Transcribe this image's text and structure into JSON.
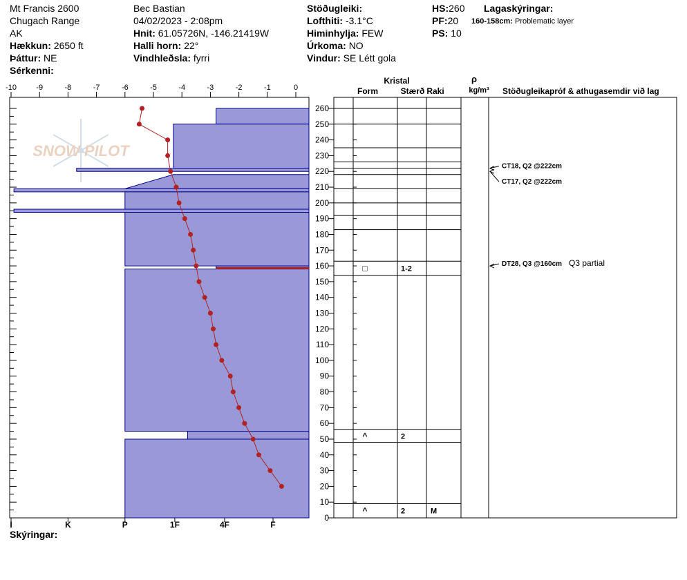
{
  "header": {
    "location": "Mt Francis 2600",
    "range": "Chugach Range",
    "state": "AK",
    "elevation_label": "Hækkun:",
    "elevation_value": "2650 ft",
    "aspect_label": "Þáttur:",
    "aspect_value": "NE",
    "features_label": "Sérkenni:",
    "observer": "Bec Bastian",
    "datetime": "04/02/2023 - 2:08pm",
    "coords_label": "Hnit:",
    "coords_value": "61.05726N, -146.21419W",
    "slope_label": "Halli horn:",
    "slope_value": "22°",
    "wind_loading_label": "Vindhleðsla:",
    "wind_loading_value": "fyrri",
    "stability_label": "Stöðugleiki:",
    "air_temp_label": "Lofthiti:",
    "air_temp_value": "-3.1°C",
    "sky_label": "Himinhylja:",
    "sky_value": "FEW",
    "precip_label": "Úrkoma:",
    "precip_value": "NO",
    "wind_label": "Vindur:",
    "wind_value": "SE  Létt gola",
    "hs_label": "HS:",
    "hs_value": "260",
    "pf_label": "PF:",
    "pf_value": "20",
    "ps_label": "PS:",
    "ps_value": "10",
    "layer_notes_label": "Lagaskýringar:",
    "layer_note_range": "160-158cm:",
    "layer_note_text": "Problematic layer"
  },
  "footer": {
    "legend_label": "Skýringar:"
  },
  "watermark": "SNOW PILOT",
  "colors": {
    "hardness_fill": "#9999d8",
    "hardness_stroke": "#00008b",
    "temp_line": "#b22222",
    "problem_layer": "#b22222"
  },
  "chart_data": {
    "type": "snow-profile",
    "temp_axis_ticks": [
      "-10",
      "-9",
      "-8",
      "-7",
      "-6",
      "-5",
      "-4",
      "-3",
      "-2",
      "-1",
      "0"
    ],
    "hardness_ticks": [
      "I",
      "K",
      "P",
      "1F",
      "4F",
      "F"
    ],
    "depth_ticks": [
      "0",
      "10",
      "20",
      "30",
      "40",
      "50",
      "60",
      "70",
      "80",
      "90",
      "100",
      "110",
      "120",
      "130",
      "140",
      "150",
      "160",
      "170",
      "180",
      "190",
      "200",
      "210",
      "220",
      "230",
      "240",
      "250",
      "260"
    ],
    "ylim": [
      0,
      260
    ],
    "xlim": [
      -10,
      0
    ],
    "temperature_profile": {
      "depth": [
        260,
        250,
        240,
        230,
        220,
        210,
        200,
        190,
        180,
        170,
        160,
        150,
        140,
        130,
        120,
        110,
        100,
        90,
        80,
        70,
        60,
        50,
        40,
        30,
        20
      ],
      "temp": [
        -5.4,
        -5.5,
        -4.5,
        -4.5,
        -4.4,
        -4.2,
        -4.1,
        -3.9,
        -3.7,
        -3.6,
        -3.5,
        -3.4,
        -3.2,
        -3.0,
        -2.9,
        -2.8,
        -2.6,
        -2.3,
        -2.2,
        -2.0,
        -1.8,
        -1.5,
        -1.3,
        -0.9,
        -0.5
      ]
    },
    "hardness_scale": {
      "I": -10,
      "K": -8,
      "P": -6,
      "1F": -4.25,
      "4F": -2.5,
      "F": -0.8
    },
    "layers": [
      {
        "top": 260,
        "bottom": 250,
        "h_top": -2.8,
        "h_bot": -2.8
      },
      {
        "top": 250,
        "bottom": 222,
        "h_top": -4.3,
        "h_bot": -4.3
      },
      {
        "top": 222,
        "bottom": 220,
        "h_top": -7.7,
        "h_bot": -7.7
      },
      {
        "top": 218,
        "bottom": 209,
        "h_top": -4.3,
        "h_bot": -6
      },
      {
        "top": 209,
        "bottom": 207,
        "h_top": -9.9,
        "h_bot": -9.9
      },
      {
        "top": 207,
        "bottom": 196,
        "h_top": -6,
        "h_bot": -6
      },
      {
        "top": 196,
        "bottom": 194,
        "h_top": -9.9,
        "h_bot": -9.9
      },
      {
        "top": 194,
        "bottom": 160,
        "h_top": -6,
        "h_bot": -6
      },
      {
        "top": 160,
        "bottom": 158,
        "h_top": -2.8,
        "h_bot": -2.8
      },
      {
        "top": 158,
        "bottom": 55,
        "h_top": -6,
        "h_bot": -6
      },
      {
        "top": 55,
        "bottom": 50,
        "h_top": -3.8,
        "h_bot": -3.8
      },
      {
        "top": 50,
        "bottom": 0,
        "h_top": -6,
        "h_bot": -6
      }
    ],
    "table_headers": {
      "crystal": "Kristal",
      "form": "Form",
      "size": "Stærð",
      "moisture": "Raki",
      "density_symbol": "ρ",
      "density_unit": "kg/m³",
      "tests": "Stöðugleikapróf & athugasemdir við lag"
    },
    "layer_boundaries": [
      260,
      250,
      235,
      226,
      222,
      218,
      209,
      200,
      192,
      183,
      163,
      154,
      56,
      48,
      9
    ],
    "layer_rows": [
      {
        "top": 163,
        "bottom": 154,
        "form": "□",
        "size": "1-2",
        "moisture": ""
      },
      {
        "top": 56,
        "bottom": 48,
        "form": "^",
        "size": "2",
        "moisture": ""
      },
      {
        "top": 9,
        "bottom": 0,
        "form": "^",
        "size": "2",
        "moisture": "M"
      }
    ],
    "tests": [
      {
        "depth": 222,
        "label": "CT18, Q2 @222cm",
        "comment": ""
      },
      {
        "depth": 220,
        "label": "CT17, Q2 @222cm",
        "comment": ""
      },
      {
        "depth": 160,
        "label": "DT28, Q3 @160cm",
        "comment": "Q3 partial"
      }
    ]
  }
}
